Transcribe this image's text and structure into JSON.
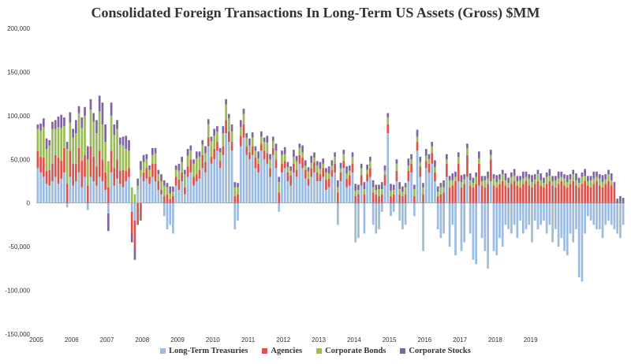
{
  "chart_data": {
    "type": "bar",
    "stacked": true,
    "title": "Consolidated Foreign Transactions In Long-Term US Assets (Gross) $MM",
    "xlabel": "",
    "ylabel": "",
    "ylim": [
      -150000,
      200000
    ],
    "y_ticks": [
      "200,000",
      "150,000",
      "100,000",
      "50,000",
      "0",
      "-50,000",
      "-100,000",
      "-150,000"
    ],
    "y_tick_values": [
      200000,
      150000,
      100000,
      50000,
      0,
      -50000,
      -100000,
      -150000
    ],
    "x_tick_labels": [
      "2005",
      "2006",
      "2007",
      "2008",
      "2009",
      "2010",
      "2011",
      "2012",
      "2013",
      "2014",
      "2015",
      "2016",
      "2017",
      "2018",
      "2019"
    ],
    "grid": false,
    "legend_position": "bottom",
    "months_start_year": 2005,
    "series": [
      {
        "name": "Long-Term Treasuries",
        "color": "#9bbbe0",
        "values": [
          40000,
          35000,
          30000,
          22000,
          20000,
          25000,
          30000,
          22000,
          28000,
          35000,
          -5000,
          30000,
          20000,
          25000,
          35000,
          18000,
          30000,
          -8000,
          30000,
          25000,
          20000,
          30000,
          25000,
          15000,
          -12000,
          35000,
          20000,
          28000,
          22000,
          18000,
          25000,
          30000,
          -10000,
          -20000,
          15000,
          30000,
          25000,
          28000,
          22000,
          30000,
          25000,
          15000,
          10000,
          -15000,
          -30000,
          -25000,
          -35000,
          20000,
          15000,
          25000,
          10000,
          30000,
          35000,
          20000,
          25000,
          28000,
          40000,
          35000,
          65000,
          45000,
          50000,
          60000,
          40000,
          55000,
          80000,
          70000,
          60000,
          -30000,
          -20000,
          65000,
          75000,
          55000,
          50000,
          55000,
          40000,
          35000,
          60000,
          50000,
          45000,
          30000,
          55000,
          40000,
          -10000,
          35000,
          40000,
          25000,
          20000,
          35000,
          30000,
          45000,
          40000,
          28000,
          20000,
          30000,
          35000,
          25000,
          25000,
          30000,
          15000,
          18000,
          30000,
          35000,
          -25000,
          25000,
          40000,
          18000,
          20000,
          35000,
          -45000,
          -40000,
          20000,
          -35000,
          25000,
          30000,
          -25000,
          -35000,
          -30000,
          -10000,
          20000,
          80000,
          -15000,
          -10000,
          25000,
          -20000,
          -30000,
          -25000,
          25000,
          35000,
          -15000,
          60000,
          30000,
          -55000,
          40000,
          35000,
          45000,
          25000,
          -30000,
          -40000,
          -35000,
          30000,
          -50000,
          -25000,
          -60000,
          25000,
          -55000,
          -45000,
          30000,
          -35000,
          -65000,
          -70000,
          20000,
          -40000,
          -55000,
          -75000,
          25000,
          -55000,
          -60000,
          -40000,
          -50000,
          -25000,
          -30000,
          -35000,
          -25000,
          -40000,
          -20000,
          -35000,
          -30000,
          -25000,
          -45000,
          -20000,
          -30000,
          -25000,
          -20000,
          -35000,
          -25000,
          -45000,
          -30000,
          -50000,
          -40000,
          -55000,
          -60000,
          -35000,
          -45000,
          -30000,
          -85000,
          -90000,
          -35000,
          -15000,
          -20000,
          -25000,
          -30000,
          -30000,
          -40000,
          -25000,
          -20000,
          -25000,
          -30000,
          -35000,
          -40000,
          -25000
        ],
        "_source_note": ""
      },
      {
        "name": "Agencies",
        "color": "#d9534f",
        "values": [
          20000,
          18000,
          22000,
          15000,
          18000,
          20000,
          25000,
          30000,
          20000,
          28000,
          22000,
          30000,
          25000,
          20000,
          28000,
          30000,
          25000,
          20000,
          35000,
          28000,
          22000,
          30000,
          25000,
          20000,
          18000,
          25000,
          20000,
          22000,
          15000,
          20000,
          12000,
          10000,
          -25000,
          -30000,
          -25000,
          -20000,
          10000,
          12000,
          8000,
          15000,
          20000,
          10000,
          5000,
          8000,
          10000,
          5000,
          8000,
          10000,
          12000,
          10000,
          8000,
          12000,
          15000,
          10000,
          8000,
          10000,
          15000,
          12000,
          10000,
          8000,
          12000,
          10000,
          8000,
          10000,
          15000,
          12000,
          10000,
          8000,
          10000,
          12000,
          15000,
          10000,
          8000,
          10000,
          12000,
          10000,
          8000,
          10000,
          12000,
          10000,
          8000,
          10000,
          12000,
          10000,
          8000,
          10000,
          12000,
          10000,
          8000,
          10000,
          12000,
          10000,
          8000,
          10000,
          12000,
          10000,
          8000,
          10000,
          12000,
          10000,
          8000,
          10000,
          12000,
          10000,
          8000,
          10000,
          12000,
          10000,
          8000,
          10000,
          12000,
          10000,
          8000,
          10000,
          12000,
          10000,
          8000,
          10000,
          12000,
          10000,
          8000,
          10000,
          12000,
          10000,
          8000,
          10000,
          12000,
          10000,
          8000,
          10000,
          12000,
          10000,
          8000,
          10000,
          12000,
          10000,
          8000,
          10000,
          12000,
          15000,
          18000,
          20000,
          25000,
          20000,
          18000,
          22000,
          25000,
          20000,
          18000,
          22000,
          25000,
          20000,
          18000,
          22000,
          25000,
          20000,
          18000,
          22000,
          25000,
          20000,
          18000,
          22000,
          25000,
          20000,
          18000,
          22000,
          25000,
          20000,
          18000,
          22000,
          25000,
          20000,
          18000,
          22000,
          25000,
          20000,
          18000,
          22000,
          25000,
          20000,
          18000,
          22000,
          25000,
          20000,
          18000,
          22000,
          25000,
          20000,
          18000,
          22000,
          25000,
          20000,
          18000,
          22000,
          25000,
          20000,
          18000
        ],
        "_source_note": ""
      },
      {
        "name": "Corporate Bonds",
        "color": "#9bbb59",
        "values": [
          25000,
          30000,
          35000,
          25000,
          28000,
          40000,
          30000,
          35000,
          38000,
          25000,
          40000,
          32000,
          30000,
          35000,
          40000,
          38000,
          45000,
          30000,
          42000,
          40000,
          38000,
          45000,
          40000,
          35000,
          30000,
          40000,
          38000,
          35000,
          30000,
          28000,
          25000,
          20000,
          18000,
          10000,
          5000,
          8000,
          12000,
          10000,
          8000,
          10000,
          12000,
          8000,
          10000,
          12000,
          8000,
          6000,
          5000,
          8000,
          10000,
          12000,
          15000,
          12000,
          10000,
          15000,
          18000,
          15000,
          12000,
          10000,
          15000,
          18000,
          15000,
          12000,
          10000,
          15000,
          18000,
          15000,
          12000,
          10000,
          8000,
          10000,
          12000,
          10000,
          8000,
          10000,
          8000,
          6000,
          8000,
          10000,
          12000,
          10000,
          8000,
          10000,
          12000,
          10000,
          8000,
          6000,
          5000,
          8000,
          10000,
          8000,
          6000,
          5000,
          8000,
          6000,
          5000,
          8000,
          6000,
          5000,
          8000,
          6000,
          5000,
          8000,
          6000,
          5000,
          8000,
          6000,
          5000,
          8000,
          6000,
          5000,
          8000,
          6000,
          5000,
          8000,
          6000,
          5000,
          8000,
          6000,
          5000,
          8000,
          6000,
          5000,
          8000,
          6000,
          5000,
          8000,
          6000,
          5000,
          8000,
          6000,
          5000,
          8000,
          6000,
          5000,
          8000,
          6000,
          5000,
          8000,
          6000,
          5000,
          8000,
          6000,
          5000,
          8000,
          6000,
          5000,
          8000,
          6000,
          5000,
          8000,
          6000,
          5000,
          8000,
          6000,
          5000,
          8000,
          6000,
          5000,
          8000,
          6000,
          5000,
          8000,
          6000,
          5000,
          8000,
          6000,
          5000,
          8000,
          6000,
          5000,
          8000,
          6000,
          5000,
          8000,
          6000,
          5000,
          8000,
          6000,
          5000,
          8000,
          6000,
          5000,
          8000,
          6000,
          5000,
          8000,
          6000,
          5000,
          8000,
          6000,
          5000,
          8000,
          6000,
          5000,
          8000,
          6000
        ],
        "_source_note": ""
      },
      {
        "name": "Corporate Stocks",
        "color": "#8064a2",
        "values": [
          5000,
          8000,
          10000,
          12000,
          6000,
          8000,
          10000,
          12000,
          15000,
          10000,
          8000,
          12000,
          10000,
          15000,
          8000,
          12000,
          10000,
          15000,
          12000,
          10000,
          15000,
          18000,
          25000,
          20000,
          -20000,
          15000,
          12000,
          10000,
          8000,
          10000,
          15000,
          12000,
          -10000,
          -15000,
          8000,
          10000,
          8000,
          6000,
          5000,
          8000,
          6000,
          5000,
          8000,
          6000,
          5000,
          8000,
          6000,
          5000,
          8000,
          6000,
          5000,
          8000,
          6000,
          5000,
          8000,
          6000,
          5000,
          8000,
          6000,
          5000,
          8000,
          6000,
          5000,
          8000,
          6000,
          5000,
          8000,
          6000,
          5000,
          8000,
          6000,
          5000,
          8000,
          6000,
          5000,
          8000,
          6000,
          5000,
          8000,
          6000,
          5000,
          8000,
          6000,
          5000,
          8000,
          6000,
          5000,
          8000,
          6000,
          5000,
          8000,
          6000,
          5000,
          8000,
          6000,
          5000,
          8000,
          6000,
          5000,
          8000,
          6000,
          5000,
          8000,
          6000,
          5000,
          8000,
          6000,
          5000,
          8000,
          6000,
          5000,
          8000,
          6000,
          5000,
          8000,
          6000,
          5000,
          8000,
          6000,
          5000,
          8000,
          6000,
          5000,
          8000,
          6000,
          5000,
          8000,
          6000,
          5000,
          8000,
          6000,
          5000,
          8000,
          6000,
          5000,
          8000,
          6000,
          5000,
          8000,
          6000,
          5000,
          8000,
          6000,
          5000,
          8000,
          6000,
          5000,
          8000,
          6000,
          5000,
          8000,
          6000,
          5000,
          8000,
          6000,
          5000,
          8000,
          6000,
          5000,
          8000,
          6000,
          5000,
          8000,
          6000,
          5000,
          8000,
          6000,
          5000,
          8000,
          6000,
          5000,
          8000,
          6000,
          5000,
          8000,
          6000,
          5000,
          8000,
          6000,
          5000,
          8000,
          6000,
          5000,
          8000,
          6000,
          5000,
          8000,
          6000,
          5000,
          8000,
          6000,
          5000,
          8000,
          6000,
          5000,
          8000,
          6000,
          5000,
          8000,
          6000,
          5000,
          8000
        ],
        "_source_note": ""
      }
    ]
  },
  "title": "Consolidated Foreign Transactions In Long-Term US Assets (Gross) $MM",
  "legend": {
    "items": [
      {
        "label": "Long-Term Treasuries",
        "color": "#9bbbe0"
      },
      {
        "label": "Agencies",
        "color": "#d9534f"
      },
      {
        "label": "Corporate Bonds",
        "color": "#9bbb59"
      },
      {
        "label": "Corporate Stocks",
        "color": "#8064a2"
      }
    ]
  }
}
